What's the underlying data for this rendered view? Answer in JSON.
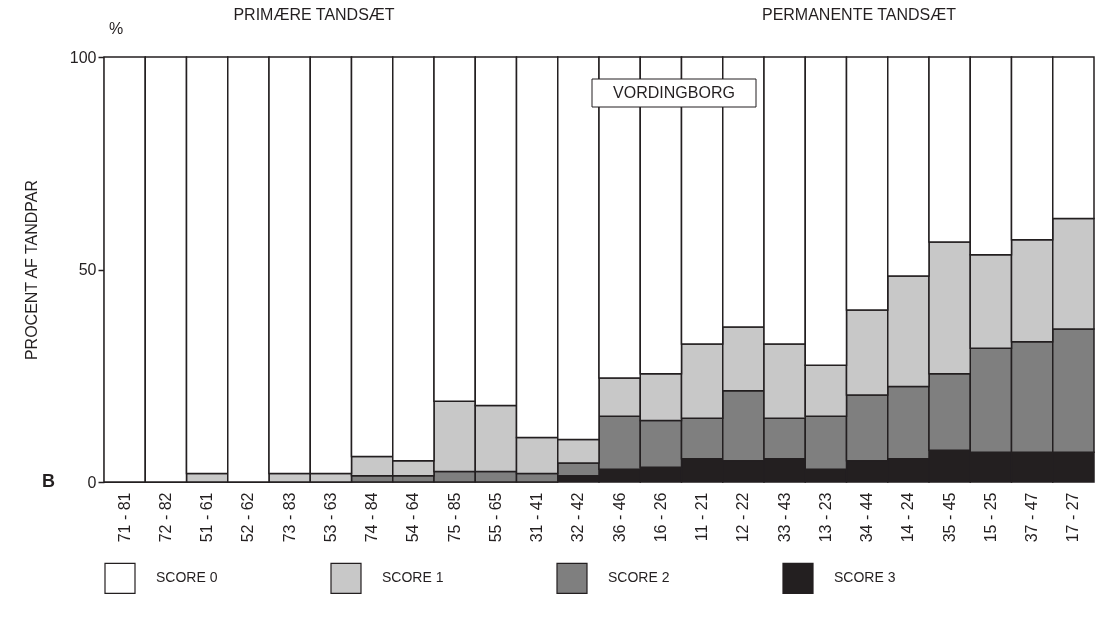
{
  "chart_data": {
    "type": "bar",
    "stacked": true,
    "ylabel": "PROCENT AF TANDPAR",
    "annotations": [
      "%",
      "PRIMÆRE TANDSÆT",
      "PERMANENTE TANDSÆT",
      "VORDINGBORG",
      "B"
    ],
    "categories": [
      "71 - 81",
      "72 - 82",
      "51 - 61",
      "52 - 62",
      "73 - 83",
      "53 - 63",
      "74 - 84",
      "54 - 64",
      "75 - 85",
      "55 - 65",
      "31 - 41",
      "32 - 42",
      "36 - 46",
      "16 - 26",
      "11 - 21",
      "12 - 22",
      "33 - 43",
      "13 - 23",
      "34 - 44",
      "14 - 24",
      "35 - 45",
      "15 - 25",
      "37 - 47",
      "17 - 27"
    ],
    "series": [
      {
        "name": "SCORE 3",
        "color": "#231f20",
        "values": [
          0,
          0,
          0,
          0,
          0,
          0,
          0,
          0,
          0,
          0,
          0,
          1.5,
          3,
          3.5,
          5.5,
          5,
          5.5,
          3,
          5,
          5.5,
          7.5,
          7,
          7,
          7
        ]
      },
      {
        "name": "SCORE 2",
        "color": "#7f7f7f",
        "values": [
          0,
          0,
          0,
          0,
          0,
          0,
          1.5,
          1.5,
          2.5,
          2.5,
          2,
          3,
          12.5,
          11,
          9.5,
          16.5,
          9.5,
          12.5,
          15.5,
          17,
          18,
          24.5,
          26,
          29
        ]
      },
      {
        "name": "SCORE 1",
        "color": "#c8c8c8",
        "values": [
          0,
          0,
          2,
          0,
          2,
          2,
          4.5,
          3.5,
          16.5,
          15.5,
          8.5,
          5.5,
          9,
          11,
          17.5,
          15,
          17.5,
          12,
          20,
          26,
          31,
          22,
          24,
          26
        ]
      },
      {
        "name": "SCORE 0",
        "color": "#ffffff",
        "values": [
          100,
          100,
          98,
          100,
          98,
          98,
          94,
          95,
          81,
          82,
          89.5,
          90,
          75.5,
          74.5,
          67.5,
          63.5,
          67.5,
          72.5,
          59.5,
          51.5,
          43.5,
          46.5,
          43,
          38
        ]
      }
    ],
    "ylim": [
      0,
      100
    ],
    "yticks": [
      0,
      50,
      100
    ],
    "grid": false,
    "legend": "bottom"
  }
}
